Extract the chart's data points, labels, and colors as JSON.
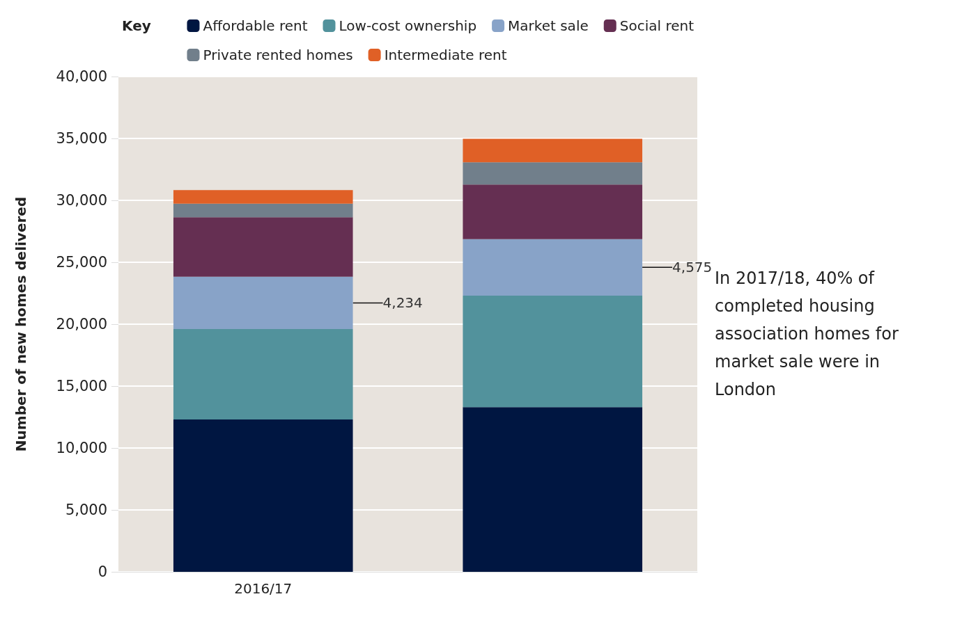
{
  "chart_data": {
    "type": "bar",
    "stacked": true,
    "ylabel": "Number of new homes delivered",
    "legend_title": "Key",
    "legend": "top right",
    "grid": "y",
    "categories": [
      "2016/17",
      null
    ],
    "series": [
      {
        "name": "Affordable rent",
        "color": "#001641",
        "values": [
          12300,
          13300
        ]
      },
      {
        "name": "Low-cost ownership",
        "color": "#52929c",
        "values": [
          7300,
          9000
        ]
      },
      {
        "name": "Market sale",
        "color": "#88a3c8",
        "values": [
          4234,
          4575
        ],
        "value_labels": [
          "4,234",
          "4,575"
        ]
      },
      {
        "name": "Social rent",
        "color": "#652f52",
        "values": [
          4800,
          4400
        ]
      },
      {
        "name": "Private rented homes",
        "color": "#717f8b",
        "values": [
          1100,
          1800
        ]
      },
      {
        "name": "Intermediate rent",
        "color": "#e06026",
        "values": [
          1100,
          1900
        ]
      }
    ],
    "ylim": [
      0,
      40000
    ],
    "yticks": [
      {
        "value": 0,
        "label": "0"
      },
      {
        "value": 5000,
        "label": "5,000"
      },
      {
        "value": 10000,
        "label": "10,000"
      },
      {
        "value": 15000,
        "label": "15,000"
      },
      {
        "value": 20000,
        "label": "20,000"
      },
      {
        "value": 25000,
        "label": "25,000"
      },
      {
        "value": 30000,
        "label": "30,000"
      },
      {
        "value": 35000,
        "label": "35,000"
      },
      {
        "value": 40000,
        "label": "40,000"
      }
    ],
    "annotations": [
      "In 2017/18, 40% of completed housing association homes for market sale were in London"
    ]
  }
}
